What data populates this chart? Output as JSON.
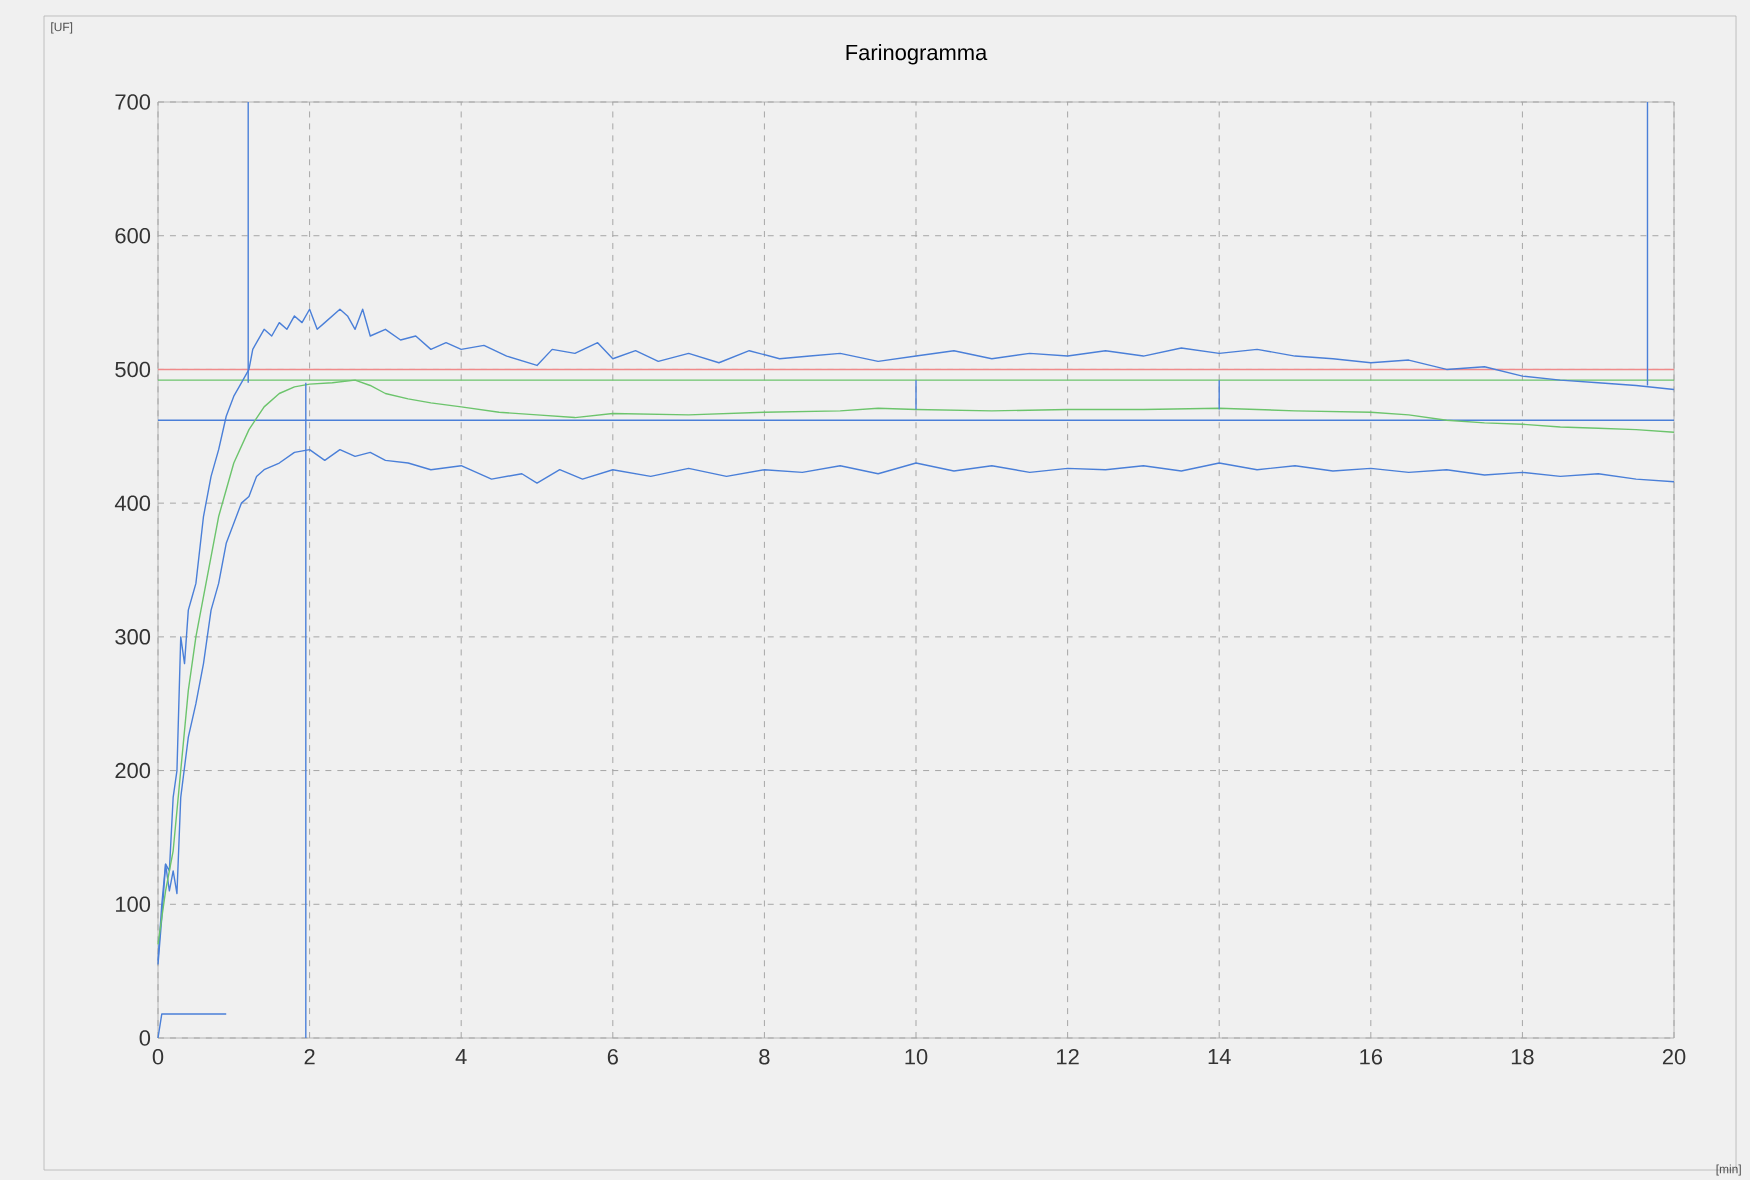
{
  "chart_data": {
    "type": "line",
    "title": "Farinogramma",
    "annotations": [
      "[UF]",
      "[min]"
    ],
    "xlim": [
      0,
      20
    ],
    "ylim": [
      0,
      700
    ],
    "xticks": [
      0,
      2,
      4,
      6,
      8,
      10,
      12,
      14,
      16,
      18,
      20
    ],
    "yticks": [
      0,
      100,
      200,
      300,
      400,
      500,
      600,
      700
    ],
    "grid": true,
    "line_style": "solid",
    "ref_lines": [
      {
        "axis": "y",
        "value": 500,
        "color": "#f08a8a"
      },
      {
        "axis": "y",
        "value": 492,
        "color": "#6cc46c"
      },
      {
        "axis": "y",
        "value": 462,
        "color": "#4a7fd8"
      }
    ],
    "series": [
      {
        "color": "#4a7fd8",
        "x": [
          0,
          0.05,
          0.1,
          0.15,
          0.2,
          0.25,
          0.3,
          0.35,
          0.4,
          0.45,
          0.5,
          0.6,
          0.7,
          0.8,
          0.9,
          1.0,
          1.1,
          1.2,
          1.25,
          1.3,
          1.4,
          1.5,
          1.6,
          1.7,
          1.8,
          1.9,
          2.0,
          2.1,
          2.2,
          2.3,
          2.4,
          2.5,
          2.6,
          2.7,
          2.8,
          3.0,
          3.2,
          3.4,
          3.6,
          3.8,
          4.0,
          4.3,
          4.6,
          5.0,
          5.2,
          5.5,
          5.8,
          6.0,
          6.3,
          6.6,
          7.0,
          7.4,
          7.8,
          8.2,
          8.6,
          9.0,
          9.5,
          10.0,
          10.5,
          11.0,
          11.5,
          12.0,
          12.5,
          13.0,
          13.5,
          14.0,
          14.5,
          15.0,
          15.5,
          16.0,
          16.5,
          17.0,
          17.5,
          18.0,
          18.5,
          19.0,
          19.5,
          20.0
        ],
        "values": [
          58,
          100,
          130,
          125,
          180,
          200,
          300,
          280,
          320,
          330,
          340,
          390,
          420,
          440,
          465,
          480,
          490,
          500,
          515,
          520,
          530,
          525,
          535,
          530,
          540,
          535,
          545,
          530,
          535,
          540,
          545,
          540,
          530,
          545,
          525,
          530,
          522,
          525,
          515,
          520,
          515,
          518,
          510,
          503,
          515,
          512,
          520,
          508,
          514,
          506,
          512,
          505,
          514,
          508,
          510,
          512,
          506,
          510,
          514,
          508,
          512,
          510,
          514,
          510,
          516,
          512,
          515,
          510,
          508,
          505,
          507,
          500,
          502,
          495,
          492,
          490,
          488,
          485
        ]
      },
      {
        "color": "#4a7fd8",
        "x": [
          0,
          0.05,
          0.1,
          0.15,
          0.2,
          0.25,
          0.3,
          0.4,
          0.5,
          0.6,
          0.7,
          0.8,
          0.9,
          1.0,
          1.1,
          1.2,
          1.3,
          1.4,
          1.6,
          1.8,
          2.0,
          2.2,
          2.4,
          2.6,
          2.8,
          3.0,
          3.3,
          3.6,
          4.0,
          4.4,
          4.8,
          5.0,
          5.3,
          5.6,
          6.0,
          6.5,
          7.0,
          7.5,
          8.0,
          8.5,
          9.0,
          9.5,
          10.0,
          10.5,
          11.0,
          11.5,
          12.0,
          12.5,
          13.0,
          13.5,
          14.0,
          14.5,
          15.0,
          15.5,
          16.0,
          16.5,
          17.0,
          17.5,
          18.0,
          18.5,
          19.0,
          19.5,
          20.0
        ],
        "values": [
          55,
          90,
          130,
          110,
          125,
          108,
          180,
          225,
          250,
          280,
          320,
          340,
          370,
          385,
          400,
          405,
          420,
          425,
          430,
          438,
          440,
          432,
          440,
          435,
          438,
          432,
          430,
          425,
          428,
          418,
          422,
          415,
          425,
          418,
          425,
          420,
          426,
          420,
          425,
          423,
          428,
          422,
          430,
          424,
          428,
          423,
          426,
          425,
          428,
          424,
          430,
          425,
          428,
          424,
          426,
          423,
          425,
          421,
          423,
          420,
          422,
          418,
          416
        ]
      },
      {
        "color": "#6cc46c",
        "x": [
          0,
          0.1,
          0.2,
          0.3,
          0.4,
          0.5,
          0.6,
          0.7,
          0.8,
          0.9,
          1.0,
          1.2,
          1.4,
          1.6,
          1.8,
          2.0,
          2.3,
          2.6,
          2.8,
          3.0,
          3.3,
          3.6,
          4.0,
          4.5,
          5.0,
          5.5,
          6.0,
          7.0,
          8.0,
          9.0,
          9.5,
          10.0,
          11.0,
          12.0,
          13.0,
          14.0,
          15.0,
          16.0,
          16.5,
          17.0,
          17.5,
          18.0,
          18.5,
          19.0,
          19.5,
          20.0
        ],
        "values": [
          70,
          110,
          140,
          200,
          260,
          300,
          330,
          360,
          390,
          410,
          430,
          455,
          472,
          482,
          487,
          489,
          490,
          492,
          488,
          482,
          478,
          475,
          472,
          468,
          466,
          464,
          467,
          466,
          468,
          469,
          471,
          470,
          469,
          470,
          470,
          471,
          469,
          468,
          466,
          462,
          460,
          459,
          457,
          456,
          455,
          453
        ]
      },
      {
        "color": "#4a7fd8",
        "x": [
          0,
          0.05,
          0.9
        ],
        "values": [
          0,
          18,
          18
        ]
      },
      {
        "color": "#4a7fd8",
        "x": [
          1.19,
          1.19
        ],
        "values": [
          490,
          700
        ]
      },
      {
        "color": "#4a7fd8",
        "x": [
          1.95,
          1.95
        ],
        "values": [
          0,
          490
        ]
      },
      {
        "color": "#4a7fd8",
        "x": [
          19.65,
          19.65
        ],
        "values": [
          488,
          700
        ]
      },
      {
        "color": "#4a7fd8",
        "x": [
          10,
          10
        ],
        "values": [
          470,
          492
        ]
      },
      {
        "color": "#4a7fd8",
        "x": [
          14,
          14
        ],
        "values": [
          470,
          492
        ]
      }
    ]
  }
}
